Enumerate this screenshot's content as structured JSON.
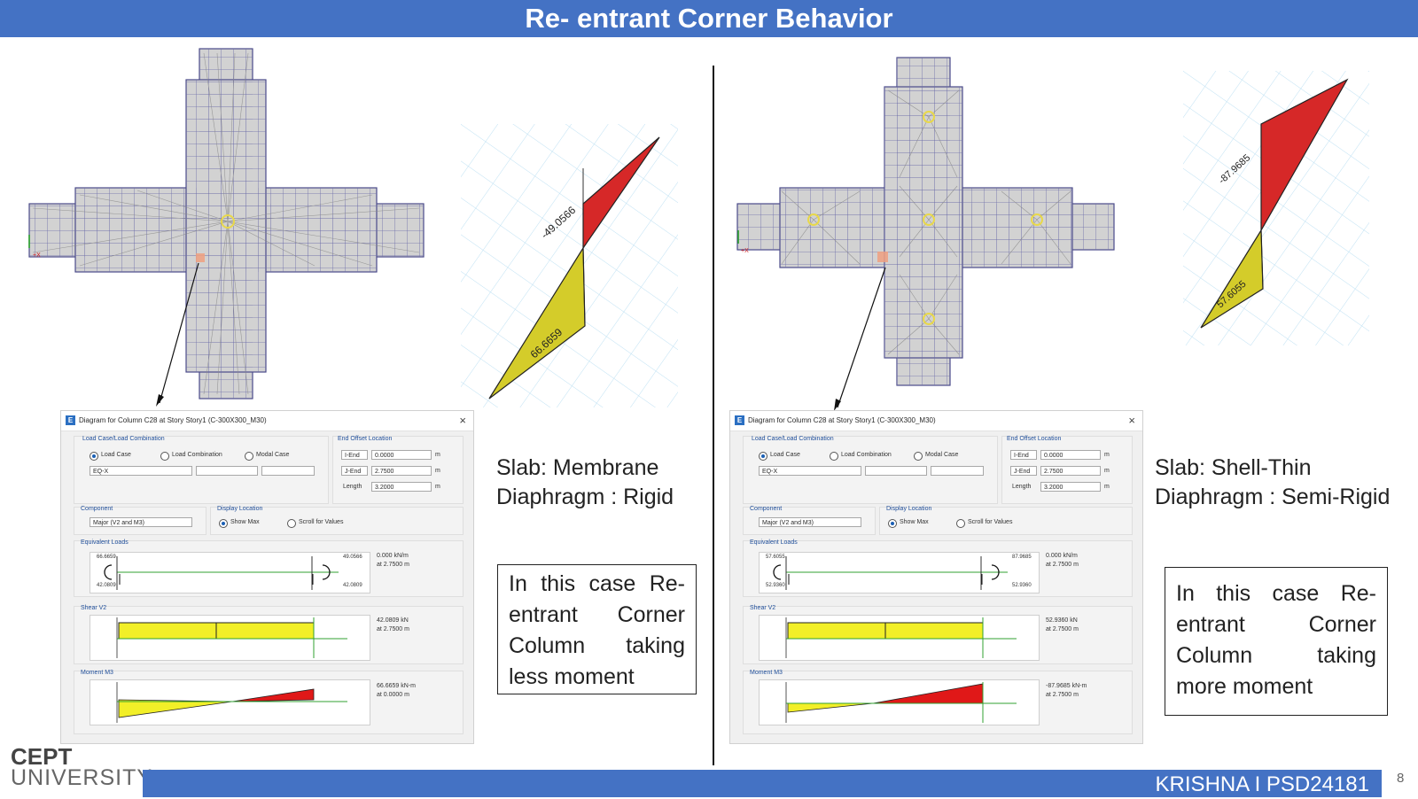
{
  "title": "Re- entrant Corner Behavior",
  "footer": {
    "author": "KRISHNA I PSD24181",
    "page": "8"
  },
  "logo": {
    "line1": "CEPT",
    "line2": "UNIVERSITY"
  },
  "colors": {
    "accent": "#4472c4",
    "negative_moment": "#d62828",
    "positive_moment": "#d4cc2a"
  },
  "left_case": {
    "moment_labels": {
      "top": "-49.0566",
      "bottom": "66.6659"
    },
    "slab_text": [
      "Slab: Membrane",
      "Diaphragm : Rigid"
    ],
    "note": [
      "In this case Re-",
      "entrant Corner",
      "Column taking",
      "less moment"
    ],
    "dialog": {
      "title": "Diagram for Column C28 at Story Story1 (C-300X300_M30)",
      "load_group": "Load Case/Load Combination",
      "opt_load_case": "Load Case",
      "opt_load_combo": "Load Combination",
      "opt_modal": "Modal Case",
      "case_value": "EQ-X",
      "offset_group": "End Offset Location",
      "i_end_label": "I-End",
      "i_end_value": "0.0000",
      "j_end_label": "J-End",
      "j_end_value": "2.7500",
      "length_label": "Length",
      "length_value": "3.2000",
      "unit": "m",
      "component_group": "Component",
      "component_value": "Major (V2 and M3)",
      "display_group": "Display Location",
      "opt_show_max": "Show Max",
      "opt_scroll": "Scroll for Values",
      "eq_group": "Equivalent Loads",
      "eq_left_top": "66.6659",
      "eq_left_bottom": "42.0809",
      "eq_right_top": "49.0566",
      "eq_right_bottom": "42.0809",
      "eq_value_1": "0.000 kN/m",
      "eq_value_2": "at 2.7500 m",
      "shear_group": "Shear V2",
      "shear_value_1": "42.0809 kN",
      "shear_value_2": "at 2.7500 m",
      "moment_group": "Moment M3",
      "moment_value_1": "66.6659 kN-m",
      "moment_value_2": "at 0.0000 m"
    }
  },
  "right_case": {
    "moment_labels": {
      "top": "-87.9685",
      "bottom": "57.6055"
    },
    "slab_text": [
      "Slab: Shell-Thin",
      "Diaphragm : Semi-Rigid"
    ],
    "note": [
      "In this case Re-",
      "entrant Corner",
      "Column taking",
      "more moment"
    ],
    "dialog": {
      "title": "Diagram for Column C28 at Story Story1 (C-300X300_M30)",
      "load_group": "Load Case/Load Combination",
      "opt_load_case": "Load Case",
      "opt_load_combo": "Load Combination",
      "opt_modal": "Modal Case",
      "case_value": "EQ-X",
      "offset_group": "End Offset Location",
      "i_end_label": "I-End",
      "i_end_value": "0.0000",
      "j_end_label": "J-End",
      "j_end_value": "2.7500",
      "length_label": "Length",
      "length_value": "3.2000",
      "unit": "m",
      "component_group": "Component",
      "component_value": "Major (V2 and M3)",
      "display_group": "Display Location",
      "opt_show_max": "Show Max",
      "opt_scroll": "Scroll for Values",
      "eq_group": "Equivalent Loads",
      "eq_left_top": "57.6055",
      "eq_left_bottom": "52.9360",
      "eq_right_top": "87.9685",
      "eq_right_bottom": "52.9360",
      "eq_value_1": "0.000 kN/m",
      "eq_value_2": "at 2.7500 m",
      "shear_group": "Shear V2",
      "shear_value_1": "52.9360 kN",
      "shear_value_2": "at 2.7500 m",
      "moment_group": "Moment M3",
      "moment_value_1": "-87.9685 kN-m",
      "moment_value_2": "at 2.7500 m"
    }
  }
}
